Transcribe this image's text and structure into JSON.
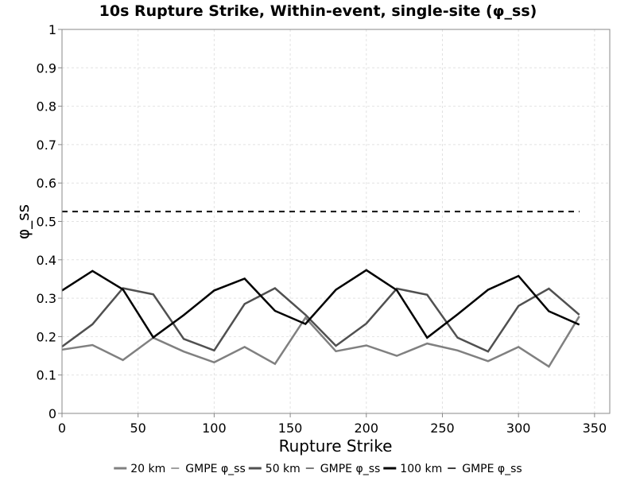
{
  "chart_data": {
    "type": "line",
    "title": "10s Rupture Strike, Within-event, single-site (φ_ss)",
    "xlabel": "Rupture Strike",
    "ylabel": "φ_ss",
    "xlim": [
      0,
      360
    ],
    "ylim": [
      0,
      1
    ],
    "x_ticks": [
      "0",
      "50",
      "100",
      "150",
      "200",
      "250",
      "300",
      "350"
    ],
    "y_ticks": [
      "0",
      "0.1",
      "0.2",
      "0.3",
      "0.4",
      "0.5",
      "0.6",
      "0.7",
      "0.8",
      "0.9",
      "1"
    ],
    "grid": true,
    "legend_position": "bottom",
    "x": [
      0,
      20,
      40,
      60,
      80,
      100,
      120,
      140,
      160,
      180,
      200,
      220,
      240,
      260,
      280,
      300,
      320,
      340
    ],
    "series": [
      {
        "name": "20 km",
        "color": "#808080",
        "dash": "solid",
        "width": 2.5,
        "values": [
          0.166,
          0.178,
          0.139,
          0.197,
          0.161,
          0.133,
          0.173,
          0.129,
          0.249,
          0.162,
          0.177,
          0.15,
          0.182,
          0.164,
          0.136,
          0.173,
          0.122,
          0.253
        ]
      },
      {
        "name": "GMPE φ_ss",
        "color": "#808080",
        "dash": "dashed",
        "width": 1.5,
        "values": [
          0.525,
          0.525,
          0.525,
          0.525,
          0.525,
          0.525,
          0.525,
          0.525,
          0.525,
          0.525,
          0.525,
          0.525,
          0.525,
          0.525,
          0.525,
          0.525,
          0.525,
          0.525
        ]
      },
      {
        "name": "50 km",
        "color": "#505050",
        "dash": "solid",
        "width": 2.5,
        "values": [
          0.174,
          0.232,
          0.326,
          0.31,
          0.194,
          0.164,
          0.285,
          0.326,
          0.257,
          0.176,
          0.234,
          0.325,
          0.309,
          0.197,
          0.161,
          0.28,
          0.325,
          0.257
        ]
      },
      {
        "name": "GMPE φ_ss",
        "color": "#505050",
        "dash": "dashed",
        "width": 1.5,
        "values": [
          0.525,
          0.525,
          0.525,
          0.525,
          0.525,
          0.525,
          0.525,
          0.525,
          0.525,
          0.525,
          0.525,
          0.525,
          0.525,
          0.525,
          0.525,
          0.525,
          0.525,
          0.525
        ]
      },
      {
        "name": "100 km",
        "color": "#000000",
        "dash": "solid",
        "width": 2.5,
        "values": [
          0.32,
          0.371,
          0.323,
          0.198,
          0.256,
          0.32,
          0.351,
          0.267,
          0.233,
          0.322,
          0.373,
          0.321,
          0.197,
          0.258,
          0.322,
          0.358,
          0.266,
          0.231
        ]
      },
      {
        "name": "GMPE φ_ss",
        "color": "#000000",
        "dash": "dashed",
        "width": 1.5,
        "values": [
          0.526,
          0.526,
          0.526,
          0.526,
          0.526,
          0.526,
          0.526,
          0.526,
          0.526,
          0.526,
          0.526,
          0.526,
          0.526,
          0.526,
          0.526,
          0.526,
          0.526,
          0.526
        ]
      }
    ]
  }
}
